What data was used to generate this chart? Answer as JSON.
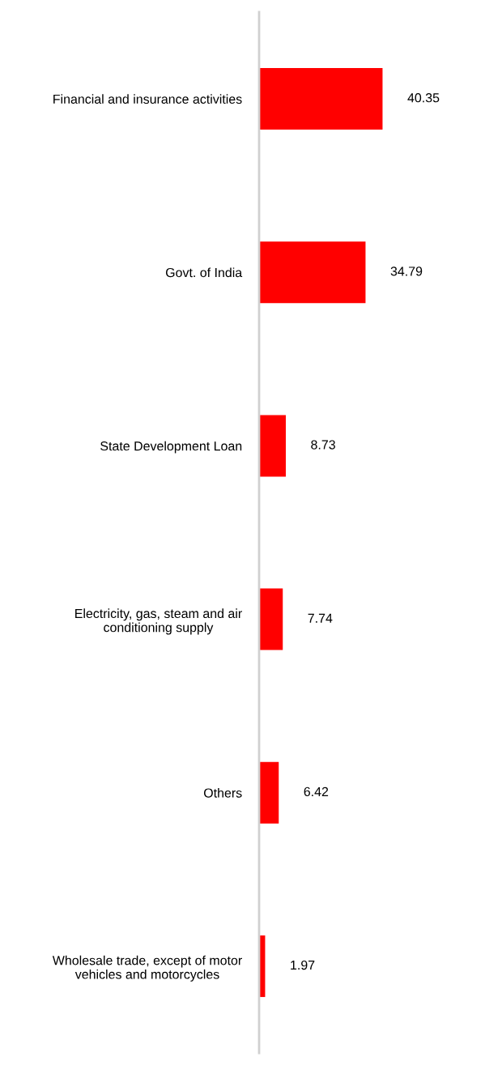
{
  "chart_data": {
    "type": "bar",
    "orientation": "horizontal",
    "categories": [
      "Financial and insurance activities",
      "Govt. of India",
      "State Development Loan",
      "Electricity, gas, steam and air conditioning supply",
      "Others",
      "Wholesale trade, except of motor vehicles and motorcycles"
    ],
    "values": [
      40.35,
      34.79,
      8.73,
      7.74,
      6.42,
      1.97
    ],
    "color": "#ff0000",
    "tick_labels": "y",
    "data_labels": true,
    "grid": false,
    "legend": false
  }
}
